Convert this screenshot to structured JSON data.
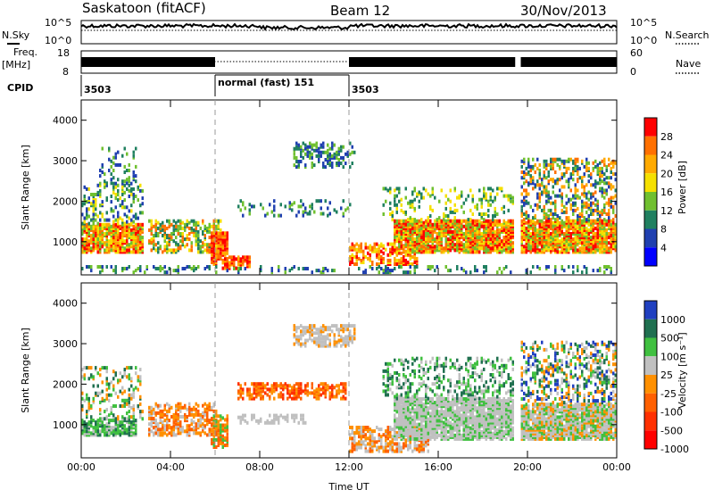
{
  "header": {
    "station": "Saskatoon (fitACF)",
    "beam": "Beam 12",
    "date": "30/Nov/2013"
  },
  "summary_panels": {
    "nsky": {
      "left_label": "N.Sky",
      "right_label": "N.Search",
      "left_ticks": [
        "10^5",
        "10^0"
      ],
      "right_ticks": [
        "10^5",
        "10^0"
      ]
    },
    "freq": {
      "left_label_1": "Freq.",
      "left_label_2": "[MHz]",
      "right_label": "Nave",
      "left_ticks": [
        "18",
        "8"
      ],
      "right_ticks": [
        "60",
        "0"
      ]
    },
    "cpid": {
      "label": "CPID",
      "segments": [
        {
          "start": 0,
          "end": 6.0,
          "label": "3503"
        },
        {
          "start": 6.0,
          "end": 12.0,
          "label": "normal (fast) 151"
        },
        {
          "start": 12.0,
          "end": 24.0,
          "label": "3503"
        }
      ]
    }
  },
  "chart_data": [
    {
      "type": "heatmap",
      "name": "power",
      "ylabel": "Slant Range [km]",
      "xlabel": "Time UT",
      "xlim": [
        0,
        24
      ],
      "ylim": [
        180,
        4500
      ],
      "x_ticks": [
        "00:00",
        "04:00",
        "08:00",
        "12:00",
        "16:00",
        "20:00",
        "00:00"
      ],
      "y_ticks": [
        1000,
        2000,
        3000,
        4000
      ],
      "colorbar": {
        "label": "Power [dB]",
        "ticks": [
          28,
          24,
          20,
          16,
          12,
          8,
          4
        ],
        "colors": [
          "#ff0000",
          "#ff7000",
          "#ffaa00",
          "#f5e000",
          "#70c030",
          "#208060",
          "#2040b0",
          "#0000ff"
        ]
      },
      "dashed_lines_x": [
        6.0,
        12.0
      ],
      "data_gap_x": [
        19.5,
        19.65
      ]
    },
    {
      "type": "heatmap",
      "name": "velocity",
      "ylabel": "Slant Range [km]",
      "xlabel": "Time UT",
      "xlim": [
        0,
        24
      ],
      "ylim": [
        180,
        4500
      ],
      "x_ticks": [
        "00:00",
        "04:00",
        "08:00",
        "12:00",
        "16:00",
        "20:00",
        "00:00"
      ],
      "y_ticks": [
        1000,
        2000,
        3000,
        4000
      ],
      "colorbar": {
        "label": "Velocity [m s⁻¹]",
        "ticks": [
          1000,
          500,
          100,
          25,
          -25,
          -100,
          -500,
          -1000
        ],
        "colors": [
          "#2040c0",
          "#207050",
          "#40c040",
          "#c0c0c0",
          "#ff9000",
          "#ff6000",
          "#ff3000",
          "#ff0000"
        ]
      },
      "dashed_lines_x": [
        6.0,
        12.0
      ],
      "data_gap_x": [
        19.5,
        19.65
      ]
    }
  ]
}
